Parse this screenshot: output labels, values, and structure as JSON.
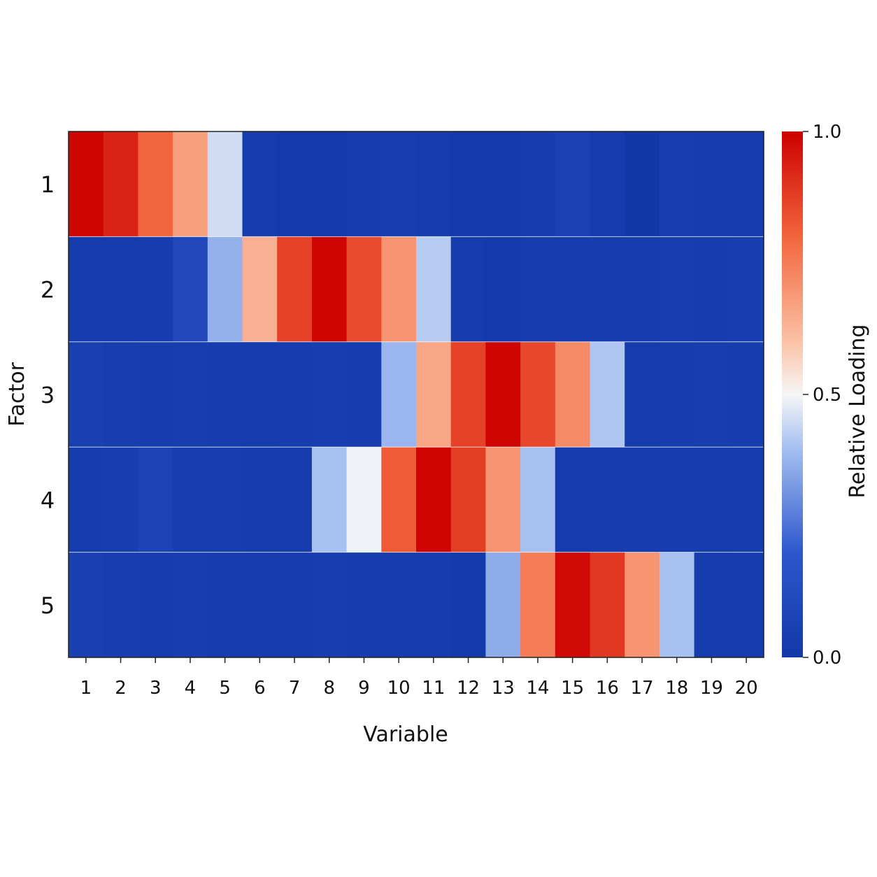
{
  "chart_data": {
    "type": "heatmap",
    "x": [
      "1",
      "2",
      "3",
      "4",
      "5",
      "6",
      "7",
      "8",
      "9",
      "10",
      "11",
      "12",
      "13",
      "14",
      "15",
      "16",
      "17",
      "18",
      "19",
      "20"
    ],
    "y": [
      "1",
      "2",
      "3",
      "4",
      "5"
    ],
    "values": [
      [
        0.99,
        0.93,
        0.8,
        0.67,
        0.45,
        0.03,
        0.01,
        0.01,
        0.02,
        0.04,
        0.02,
        0.01,
        0.01,
        0.03,
        0.06,
        0.02,
        0.0,
        0.04,
        0.03,
        0.02
      ],
      [
        0.03,
        0.02,
        0.03,
        0.1,
        0.37,
        0.64,
        0.87,
        0.99,
        0.85,
        0.7,
        0.42,
        0.02,
        0.01,
        0.03,
        0.02,
        0.03,
        0.03,
        0.04,
        0.03,
        0.04
      ],
      [
        0.05,
        0.04,
        0.03,
        0.04,
        0.03,
        0.02,
        0.03,
        0.04,
        0.03,
        0.38,
        0.66,
        0.87,
        0.99,
        0.86,
        0.72,
        0.41,
        0.02,
        0.03,
        0.04,
        0.03
      ],
      [
        0.03,
        0.04,
        0.07,
        0.04,
        0.04,
        0.03,
        0.02,
        0.4,
        0.49,
        0.82,
        0.99,
        0.88,
        0.7,
        0.4,
        0.02,
        0.03,
        0.03,
        0.03,
        0.02,
        0.03
      ],
      [
        0.05,
        0.04,
        0.03,
        0.04,
        0.03,
        0.02,
        0.03,
        0.04,
        0.03,
        0.03,
        0.03,
        0.01,
        0.36,
        0.75,
        0.98,
        0.89,
        0.7,
        0.4,
        0.03,
        0.03
      ]
    ],
    "xlabel": "Variable",
    "ylabel": "Factor",
    "colorbar": {
      "label": "Relative Loading",
      "ticks": [
        "0.0",
        "0.5",
        "1.0"
      ],
      "range": [
        0.0,
        1.0
      ],
      "colormap": "coolwarm"
    },
    "colors": {
      "low": "#1238a8",
      "mid": "#f6f6f6",
      "high": "#cc0000"
    }
  }
}
